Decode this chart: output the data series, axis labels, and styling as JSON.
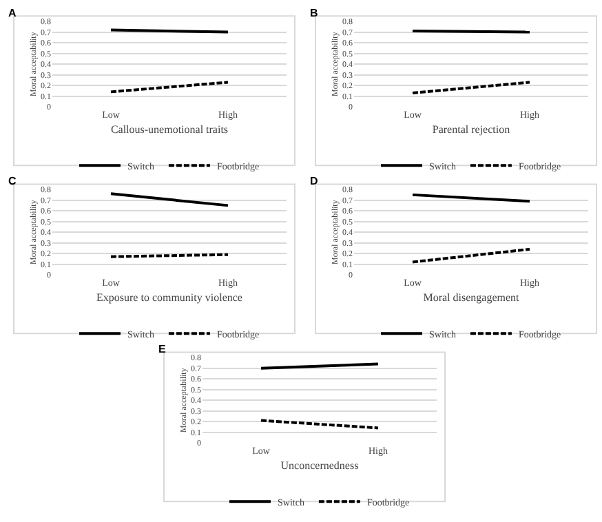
{
  "chart_data": [
    {
      "type": "line",
      "title": "A",
      "xlabel": "Callous-unemotional traits",
      "ylabel": "Moral acceptability",
      "categories": [
        "Low",
        "High"
      ],
      "ylim": [
        0,
        0.8
      ],
      "yticks": [
        0,
        0.1,
        0.2,
        0.3,
        0.4,
        0.5,
        0.6,
        0.7,
        0.8
      ],
      "grid": "y",
      "legend": "bottom",
      "series": [
        {
          "name": "Switch",
          "color": "#000000",
          "line_style": "solid",
          "values": [
            0.72,
            0.7
          ]
        },
        {
          "name": "Footbridge",
          "color": "#000000",
          "line_style": "dashed",
          "values": [
            0.14,
            0.23
          ]
        }
      ]
    },
    {
      "type": "line",
      "title": "B",
      "xlabel": "Parental rejection",
      "ylabel": "Moral acceptability",
      "categories": [
        "Low",
        "High"
      ],
      "ylim": [
        0,
        0.8
      ],
      "yticks": [
        0,
        0.1,
        0.2,
        0.3,
        0.4,
        0.5,
        0.6,
        0.7,
        0.8
      ],
      "grid": "y",
      "legend": "bottom",
      "series": [
        {
          "name": "Switch",
          "color": "#000000",
          "line_style": "solid",
          "values": [
            0.71,
            0.7
          ]
        },
        {
          "name": "Footbridge",
          "color": "#000000",
          "line_style": "dashed",
          "values": [
            0.13,
            0.23
          ]
        }
      ]
    },
    {
      "type": "line",
      "title": "C",
      "xlabel": "Exposure to community violence",
      "ylabel": "Moral acceptability",
      "categories": [
        "Low",
        "High"
      ],
      "ylim": [
        0,
        0.8
      ],
      "yticks": [
        0,
        0.1,
        0.2,
        0.3,
        0.4,
        0.5,
        0.6,
        0.7,
        0.8
      ],
      "grid": "y",
      "legend": "bottom",
      "series": [
        {
          "name": "Switch",
          "color": "#000000",
          "line_style": "solid",
          "values": [
            0.76,
            0.65
          ]
        },
        {
          "name": "Footbridge",
          "color": "#000000",
          "line_style": "dashed",
          "values": [
            0.17,
            0.19
          ]
        }
      ]
    },
    {
      "type": "line",
      "title": "D",
      "xlabel": "Moral disengagement",
      "ylabel": "Moral acceptability",
      "categories": [
        "Low",
        "High"
      ],
      "ylim": [
        0,
        0.8
      ],
      "yticks": [
        0,
        0.1,
        0.2,
        0.3,
        0.4,
        0.5,
        0.6,
        0.7,
        0.8
      ],
      "grid": "y",
      "legend": "bottom",
      "series": [
        {
          "name": "Switch",
          "color": "#000000",
          "line_style": "solid",
          "values": [
            0.75,
            0.69
          ]
        },
        {
          "name": "Footbridge",
          "color": "#000000",
          "line_style": "dashed",
          "values": [
            0.12,
            0.24
          ]
        }
      ]
    },
    {
      "type": "line",
      "title": "E",
      "xlabel": "Unconcernedness",
      "ylabel": "Moral acceptability",
      "categories": [
        "Low",
        "High"
      ],
      "ylim": [
        0,
        0.8
      ],
      "yticks": [
        0,
        0.1,
        0.2,
        0.3,
        0.4,
        0.5,
        0.6,
        0.7,
        0.8
      ],
      "grid": "y",
      "legend": "bottom",
      "series": [
        {
          "name": "Switch",
          "color": "#000000",
          "line_style": "solid",
          "values": [
            0.7,
            0.74
          ]
        },
        {
          "name": "Footbridge",
          "color": "#000000",
          "line_style": "dashed",
          "values": [
            0.21,
            0.14
          ]
        }
      ]
    }
  ]
}
